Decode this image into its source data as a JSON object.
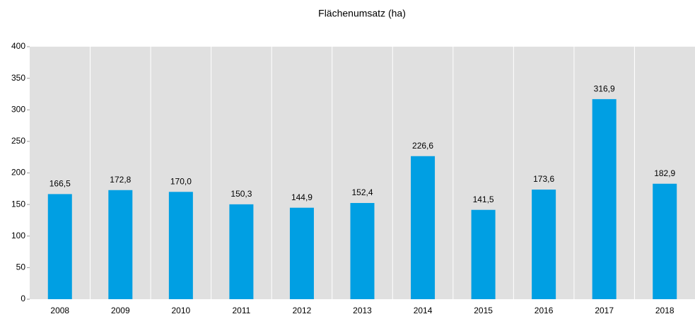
{
  "chart_data": {
    "type": "bar",
    "title": "Flächenumsatz (ha)",
    "categories": [
      "2008",
      "2009",
      "2010",
      "2011",
      "2012",
      "2013",
      "2014",
      "2015",
      "2016",
      "2017",
      "2018"
    ],
    "values": [
      166.5,
      172.8,
      170.0,
      150.3,
      144.9,
      152.4,
      226.6,
      141.5,
      173.6,
      316.9,
      182.9
    ],
    "value_labels": [
      "166,5",
      "172,8",
      "170,0",
      "150,3",
      "144,9",
      "152,4",
      "226,6",
      "141,5",
      "173,6",
      "316,9",
      "182,9"
    ],
    "color": "#009fe3",
    "ylim": [
      0,
      400
    ],
    "yticks": [
      0,
      50,
      100,
      150,
      200,
      250,
      300,
      350,
      400
    ],
    "grid": "x"
  }
}
